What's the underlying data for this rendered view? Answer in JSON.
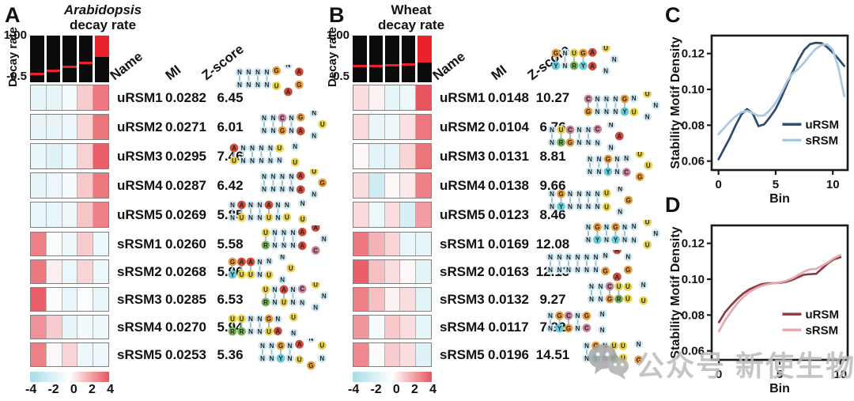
{
  "figure": {
    "nt_colors": {
      "N": "#cde7f2",
      "G": "#e79d3b",
      "A": "#d14b3d",
      "U": "#e7d24a",
      "C": "#c9849c",
      "Y": "#64cbd9",
      "R": "#77b35a"
    },
    "heat_scale": {
      "negative_end": "#a8dce9",
      "zero": "#ffffff",
      "positive_end": "#e8565f",
      "min": -4,
      "max": 4
    }
  },
  "panels": {
    "A": {
      "panel_label": "A",
      "title_line1": "Arabidopsis",
      "title_line2": "decay rate",
      "decay_axis": {
        "label": "Decay rate",
        "tick_top": "1.00",
        "tick_bottom": "-0.5"
      },
      "col_headers": {
        "name": "Name",
        "mi": "MI",
        "z": "Z-score"
      },
      "decay_bars": [
        {
          "red_line": 0.8
        },
        {
          "red_line": 0.73
        },
        {
          "red_line": 0.64
        },
        {
          "red_line": 0.56
        },
        {
          "red_top": 0.45
        }
      ],
      "colorbar_ticks": [
        "-4",
        "-2",
        "0",
        "2",
        "4"
      ],
      "rows_u": [
        {
          "name": "uRSM1",
          "mi": "0.0282",
          "z": "6.45",
          "heat": [
            -1.2,
            -1.1,
            -0.5,
            1.2,
            3.2
          ],
          "motif": {
            "stem_top": "NNNN",
            "stem_bottom": "NNNN",
            "loop": "GNAGAU"
          }
        },
        {
          "name": "uRSM2",
          "mi": "0.0271",
          "z": "6.01",
          "heat": [
            -1.1,
            -1.1,
            -0.9,
            1.0,
            3.3
          ],
          "motif": {
            "stem_top": "NNCN",
            "stem_bottom": "NNGN",
            "loop": "GNUNA"
          }
        },
        {
          "name": "uRSM3",
          "mi": "0.0295",
          "z": "7.46",
          "heat": [
            -1.0,
            -1.5,
            -0.9,
            1.1,
            3.8
          ],
          "motif": {
            "stem_top": "ANNNN",
            "stem_bottom": "UNNNN",
            "loop": "UNUN"
          }
        },
        {
          "name": "uRSM4",
          "mi": "0.0287",
          "z": "6.42",
          "heat": [
            -1.1,
            -0.9,
            -0.4,
            1.3,
            3.2
          ],
          "motif": {
            "stem_top": "NNNN",
            "stem_bottom": "NNNN",
            "loop": "AUGNA"
          }
        },
        {
          "name": "uRSM5",
          "mi": "0.0269",
          "z": "5.85",
          "heat": [
            -1.0,
            -1.0,
            -0.8,
            1.4,
            3.0
          ],
          "motif": {
            "stem_top": "NANNAN",
            "stem_bottom": "NUNNUN",
            "loop": "NNUU"
          }
        }
      ],
      "rows_s": [
        {
          "name": "sRSM1",
          "mi": "0.0260",
          "z": "5.58",
          "heat": [
            3.0,
            -0.3,
            -0.8,
            1.2,
            -0.9
          ],
          "motif": {
            "stem_top": "UNNN",
            "stem_bottom": "RNNN",
            "loop": "AANCA"
          }
        },
        {
          "name": "sRSM2",
          "mi": "0.0268",
          "z": "5.96",
          "heat": [
            3.2,
            0.4,
            -0.9,
            1.0,
            -0.9
          ],
          "motif": {
            "stem_top": "GAAN",
            "stem_bottom": "YUUN",
            "loop": "NNUNU"
          }
        },
        {
          "name": "sRSM3",
          "mi": "0.0285",
          "z": "6.53",
          "heat": [
            3.8,
            0.1,
            -1.0,
            -0.2,
            -1.0
          ],
          "motif": {
            "stem_top": "UNAN",
            "stem_bottom": "RNUN",
            "loop": "CUNNN"
          }
        },
        {
          "name": "sRSM4",
          "mi": "0.0270",
          "z": "5.94",
          "heat": [
            2.6,
            1.2,
            -1.1,
            -0.6,
            -0.8
          ],
          "motif": {
            "stem_top": "UUNNG",
            "stem_bottom": "RRNNU",
            "loop": "NUNA"
          }
        },
        {
          "name": "sRSM5",
          "mi": "0.0253",
          "z": "5.36",
          "heat": [
            3.0,
            0.2,
            1.0,
            -0.9,
            -0.8
          ],
          "motif": {
            "stem_top": "NNGN",
            "stem_bottom": "NNYN",
            "loop": "ANUNGU"
          }
        }
      ]
    },
    "B": {
      "panel_label": "B",
      "title_line1": "Wheat",
      "title_line2": "decay rate",
      "decay_axis": {
        "label": "Decay rate",
        "tick_top": "1.00",
        "tick_bottom": "-0.5"
      },
      "col_headers": {
        "name": "Name",
        "mi": "MI",
        "z": "Z-score"
      },
      "decay_bars": [
        {
          "red_line": 0.62
        },
        {
          "red_line": 0.62
        },
        {
          "red_line": 0.615
        },
        {
          "red_line": 0.585
        },
        {
          "red_top": 0.57
        }
      ],
      "colorbar_ticks": [
        "-4",
        "-2",
        "0",
        "2",
        "4"
      ],
      "rows_u": [
        {
          "name": "uRSM1",
          "mi": "0.0148",
          "z": "10.27",
          "heat": [
            0.8,
            0.3,
            -1.2,
            -0.8,
            4.0
          ],
          "motif": {
            "stem_top": "GNUG",
            "stem_bottom": "YNRY",
            "loop": "AUNNA"
          }
        },
        {
          "name": "uRSM2",
          "mi": "0.0104",
          "z": "6.76",
          "heat": [
            0.9,
            -1.0,
            -0.8,
            0.7,
            3.2
          ],
          "motif": {
            "stem_top": "CNNNG",
            "stem_bottom": "GNNNY",
            "loop": "NUNNU"
          }
        },
        {
          "name": "uRSM3",
          "mi": "0.0131",
          "z": "8.81",
          "heat": [
            0.2,
            -1.3,
            -1.1,
            1.0,
            3.3
          ],
          "motif": {
            "stem_top": "NUCNN",
            "stem_bottom": "NRGNN",
            "loop": "CNANN"
          }
        },
        {
          "name": "uRSM4",
          "mi": "0.0138",
          "z": "9.66",
          "heat": [
            0.8,
            -2.2,
            0.2,
            0.5,
            3.0
          ],
          "motif": {
            "stem_top": "NNGN",
            "stem_bottom": "NNYN",
            "loop": "NUUGC"
          }
        },
        {
          "name": "uRSM5",
          "mi": "0.0123",
          "z": "8.46",
          "heat": [
            0.9,
            -0.8,
            0.8,
            -1.8,
            2.3
          ],
          "motif": {
            "stem_top": "NGNNNN",
            "stem_bottom": "NYNNNN",
            "loop": "UNGNU"
          }
        }
      ],
      "rows_s": [
        {
          "name": "sRSM1",
          "mi": "0.0169",
          "z": "12.08",
          "heat": [
            3.2,
            1.8,
            1.0,
            -1.0,
            -1.2
          ],
          "motif": {
            "stem_top": "NGNGN",
            "stem_bottom": "NYNYN",
            "loop": "NUNUN"
          }
        },
        {
          "name": "sRSM2",
          "mi": "0.0163",
          "z": "12.13",
          "heat": [
            3.8,
            1.5,
            0.8,
            0.2,
            -1.3
          ],
          "motif": {
            "stem_top": "NNNNNN",
            "stem_bottom": "NNNNNN",
            "loop": "NANGAG"
          }
        },
        {
          "name": "sRSM3",
          "mi": "0.0132",
          "z": "9.27",
          "heat": [
            3.0,
            1.5,
            0.3,
            0.8,
            -1.4
          ],
          "motif": {
            "stem_top": "NNCU",
            "stem_bottom": "NNGR",
            "loop": "UNUU"
          }
        },
        {
          "name": "sRSM4",
          "mi": "0.0117",
          "z": "7.92",
          "heat": [
            2.5,
            -0.4,
            1.3,
            0.8,
            -1.2
          ],
          "motif": {
            "stem_top": "NGCN",
            "stem_bottom": "NYGN",
            "loop": "GNNC"
          }
        },
        {
          "name": "sRSM5",
          "mi": "0.0196",
          "z": "14.51",
          "heat": [
            2.8,
            0.1,
            1.2,
            0.8,
            -1.5
          ],
          "motif": {
            "stem_top": "NGNU",
            "stem_bottom": "NYNR",
            "loop": "UNGU"
          }
        }
      ]
    }
  },
  "chart_data": [
    {
      "id": "C",
      "panel_label": "C",
      "type": "line",
      "xlabel": "Bin",
      "ylabel": "Stability Motif Density",
      "x_ticks": [
        0,
        5,
        10
      ],
      "y_ticks": [
        0.06,
        0.08,
        0.1,
        0.12
      ],
      "xlim": [
        -0.6,
        11.3
      ],
      "ylim": [
        0.055,
        0.13
      ],
      "grid": false,
      "legend_position": "bottom-right",
      "series": [
        {
          "name": "uRSM",
          "color": "#2e4a6b",
          "x": [
            0,
            0.5,
            1,
            1.5,
            2,
            2.5,
            3,
            3.5,
            4,
            4.5,
            5,
            5.5,
            6,
            6.5,
            7,
            7.5,
            8,
            8.5,
            9,
            9.5,
            10,
            10.5,
            11
          ],
          "y": [
            0.061,
            0.067,
            0.073,
            0.08,
            0.086,
            0.089,
            0.0865,
            0.0795,
            0.0805,
            0.0845,
            0.089,
            0.0955,
            0.103,
            0.11,
            0.1165,
            0.122,
            0.1252,
            0.126,
            0.1258,
            0.1235,
            0.1205,
            0.117,
            0.113
          ]
        },
        {
          "name": "sRSM",
          "color": "#aac7e2",
          "x": [
            0,
            0.5,
            1,
            1.5,
            2,
            2.5,
            3,
            3.5,
            4,
            4.5,
            5,
            5.5,
            6,
            6.5,
            7,
            7.5,
            8,
            8.5,
            9,
            9.5,
            10,
            10.5,
            11
          ],
          "y": [
            0.075,
            0.0785,
            0.082,
            0.085,
            0.0872,
            0.088,
            0.0868,
            0.0852,
            0.0855,
            0.0885,
            0.0925,
            0.098,
            0.1045,
            0.109,
            0.1115,
            0.115,
            0.119,
            0.1225,
            0.1247,
            0.1252,
            0.122,
            0.112,
            0.0962
          ]
        }
      ]
    },
    {
      "id": "D",
      "panel_label": "D",
      "type": "line",
      "xlabel": "Bin",
      "ylabel": "Stability Motif Density",
      "x_ticks": [
        0,
        5,
        10
      ],
      "y_ticks": [
        0.06,
        0.08,
        0.1,
        0.12
      ],
      "xlim": [
        -0.6,
        10.6
      ],
      "ylim": [
        0.055,
        0.13
      ],
      "grid": false,
      "legend_position": "bottom-right",
      "series": [
        {
          "name": "uRSM",
          "color": "#8c3a3e",
          "x": [
            0,
            0.5,
            1,
            1.5,
            2,
            2.5,
            3,
            3.5,
            4,
            4.5,
            5,
            5.5,
            6,
            6.5,
            7,
            7.5,
            8,
            8.5,
            9,
            9.5,
            10
          ],
          "y": [
            0.076,
            0.0815,
            0.0855,
            0.089,
            0.092,
            0.0943,
            0.0958,
            0.0972,
            0.0977,
            0.0978,
            0.098,
            0.0985,
            0.0995,
            0.101,
            0.1025,
            0.1028,
            0.103,
            0.106,
            0.109,
            0.1112,
            0.1122
          ]
        },
        {
          "name": "sRSM",
          "color": "#e5aab0",
          "x": [
            0,
            0.5,
            1,
            1.5,
            2,
            2.5,
            3,
            3.5,
            4,
            4.5,
            5,
            5.5,
            6,
            6.5,
            7,
            7.5,
            8,
            8.5,
            9,
            9.5,
            10
          ],
          "y": [
            0.071,
            0.077,
            0.082,
            0.0865,
            0.09,
            0.0928,
            0.0948,
            0.0963,
            0.0972,
            0.0977,
            0.0982,
            0.099,
            0.1003,
            0.1022,
            0.1042,
            0.1055,
            0.1058,
            0.1075,
            0.1095,
            0.1118,
            0.1135
          ]
        }
      ]
    }
  ],
  "watermark": {
    "text": "公众号 新使生物",
    "icon": "wechat-logo",
    "color": "#bcbcbc"
  }
}
